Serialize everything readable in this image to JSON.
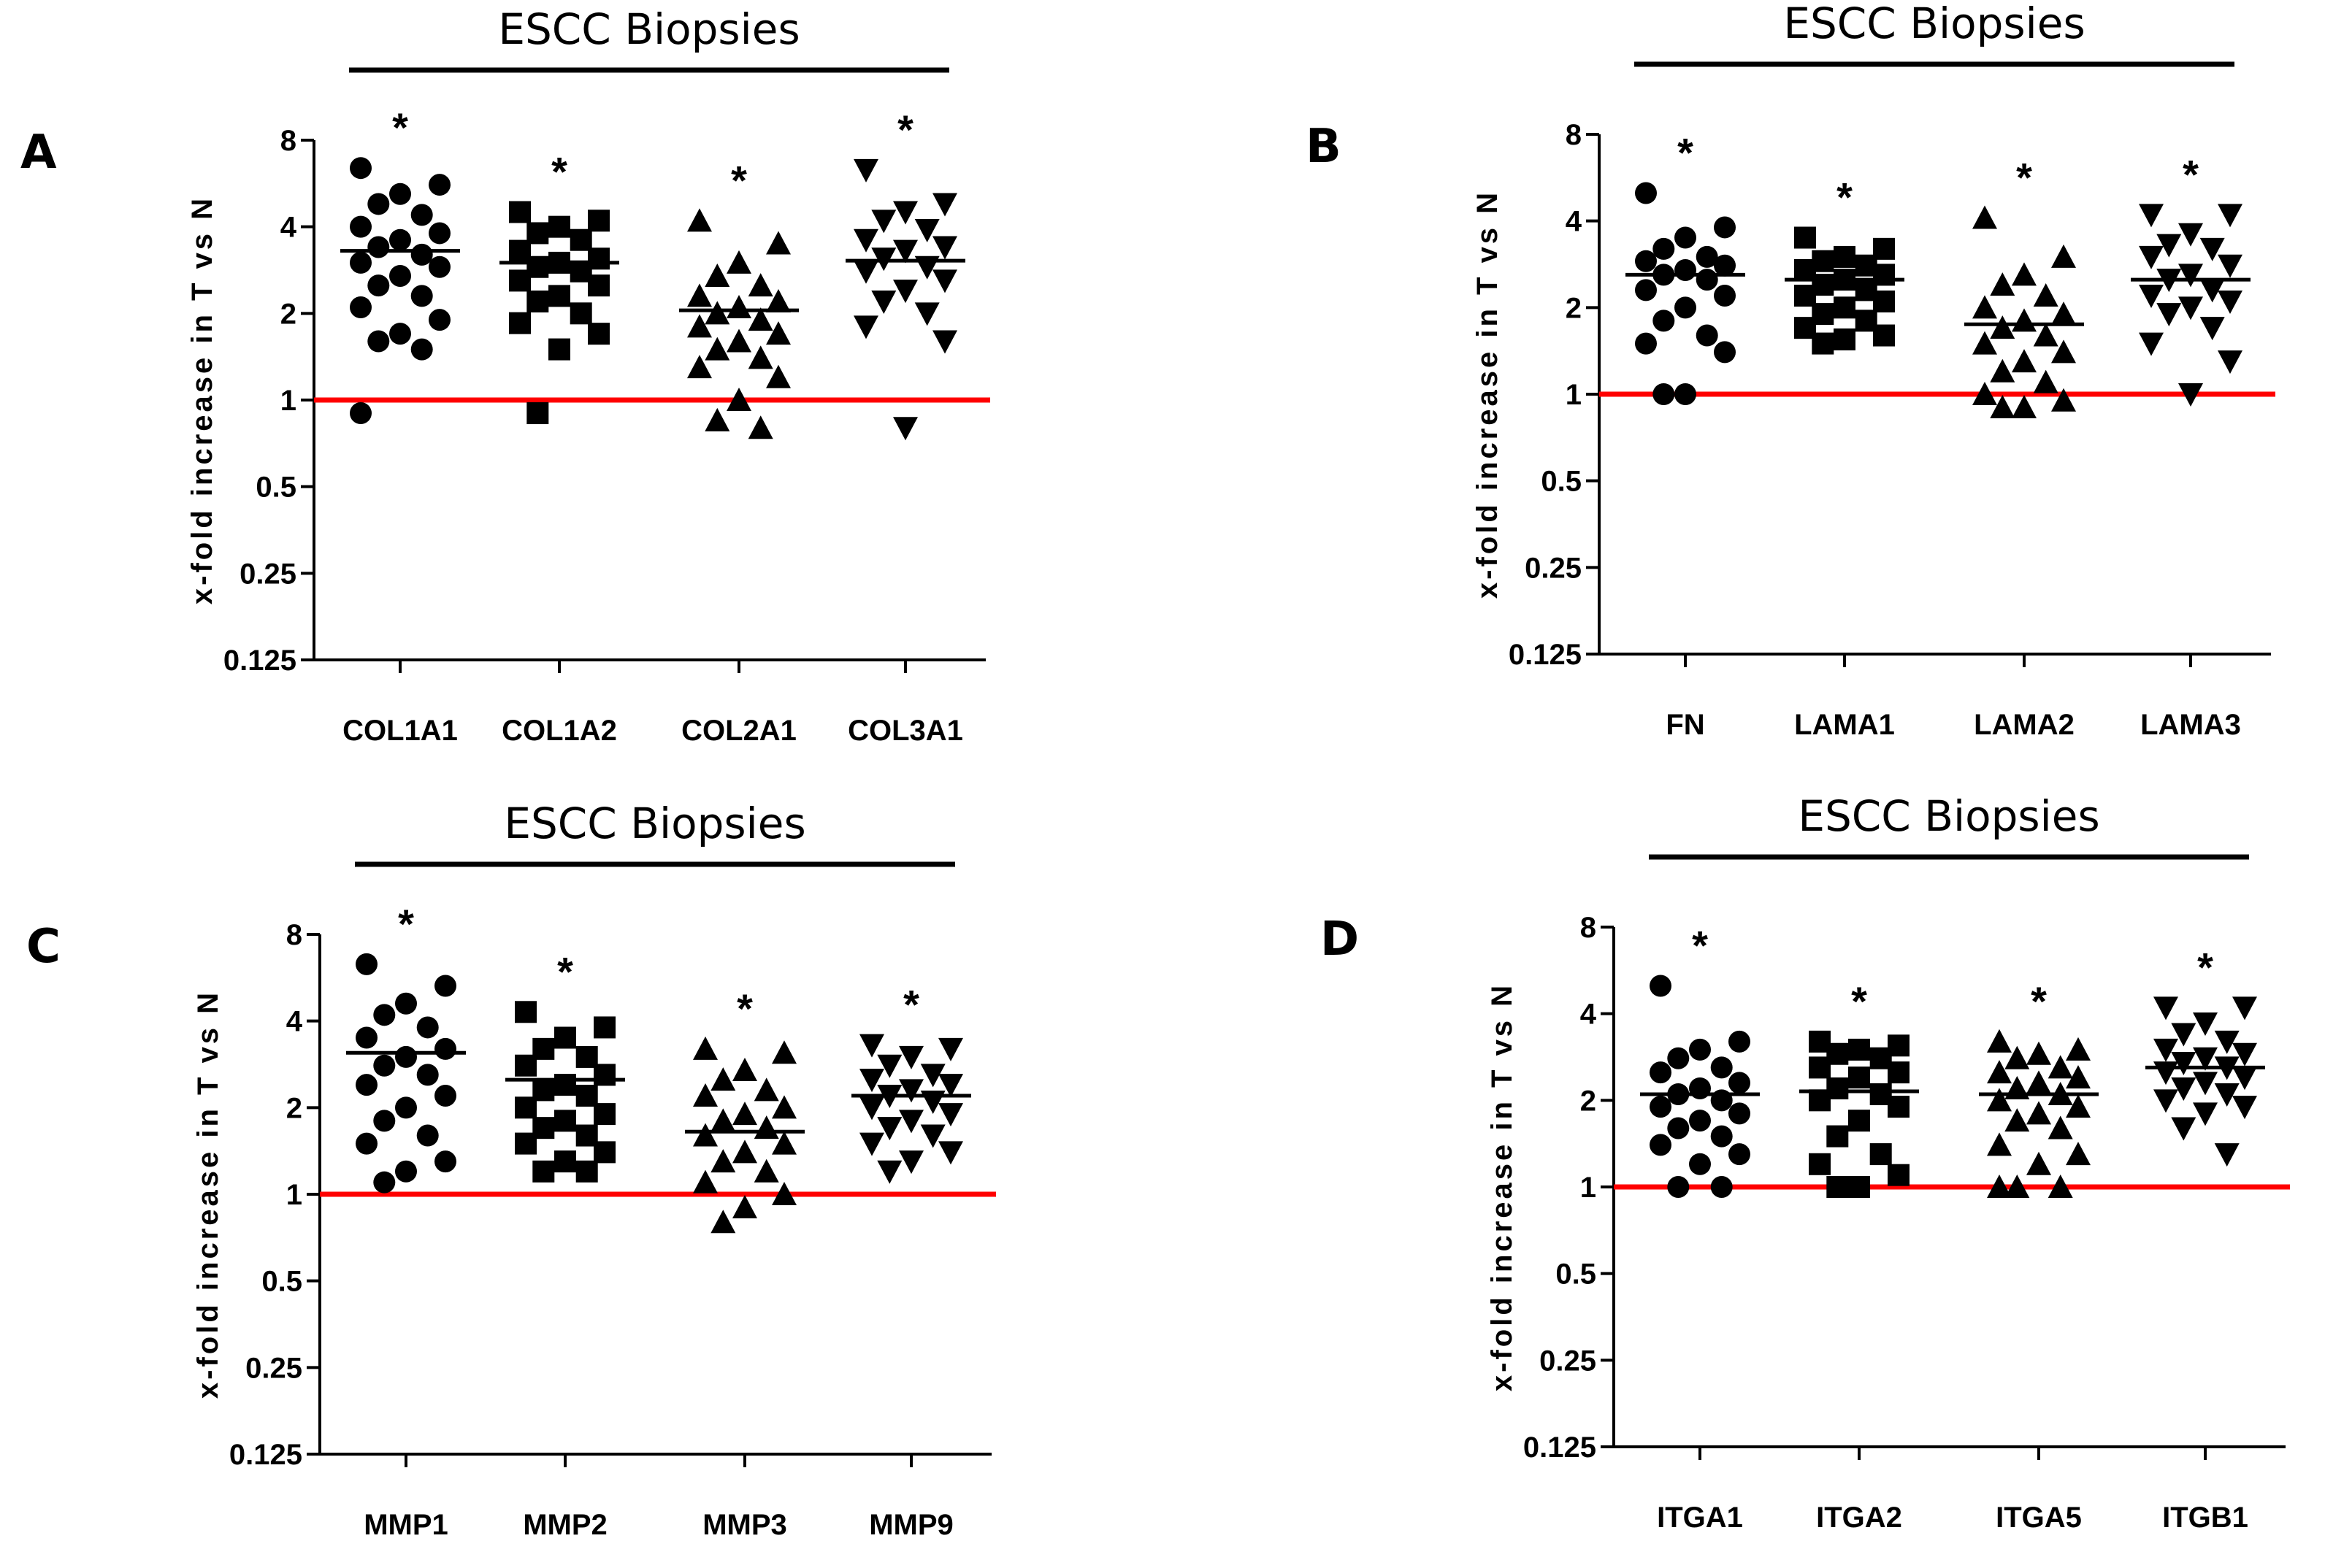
{
  "chart_data": [
    {
      "type": "scatter",
      "panel_label": "A",
      "title": "ESCC Biopsies",
      "ylabel": "x-fold increase in T vs N",
      "yscale": "log2",
      "ylim": [
        0.125,
        8
      ],
      "yticks": [
        "0.125",
        "0.25",
        "0.5",
        "1",
        "2",
        "4",
        "8"
      ],
      "baseline": 1,
      "baseline_color": "#ff0000",
      "categories": [
        "COL1A1",
        "COL1A2",
        "COL2A1",
        "COL3A1"
      ],
      "markers": [
        "circle",
        "square",
        "triangle-up",
        "triangle-down"
      ],
      "significance": [
        "*",
        "*",
        "*",
        "*"
      ],
      "means": [
        3.3,
        3.0,
        2.05,
        3.05
      ],
      "points": [
        [
          6.4,
          5.6,
          5.2,
          4.8,
          4.4,
          4.0,
          3.8,
          3.6,
          3.4,
          3.2,
          3.0,
          2.9,
          2.7,
          2.5,
          2.3,
          2.1,
          1.9,
          1.7,
          1.6,
          1.5,
          0.9
        ],
        [
          4.5,
          4.2,
          4.0,
          3.8,
          3.6,
          3.3,
          3.1,
          3.0,
          2.9,
          2.8,
          2.6,
          2.5,
          2.3,
          2.2,
          2.0,
          1.85,
          1.7,
          1.5,
          0.9
        ],
        [
          4.2,
          3.5,
          3.0,
          2.7,
          2.5,
          2.3,
          2.2,
          2.1,
          2.0,
          1.9,
          1.8,
          1.7,
          1.6,
          1.5,
          1.4,
          1.3,
          1.2,
          1.0,
          0.85,
          0.8
        ],
        [
          6.3,
          4.8,
          4.5,
          4.2,
          3.9,
          3.6,
          3.4,
          3.3,
          3.1,
          2.9,
          2.8,
          2.6,
          2.4,
          2.2,
          2.0,
          1.8,
          1.6,
          0.8
        ]
      ]
    },
    {
      "type": "scatter",
      "panel_label": "B",
      "title": "ESCC Biopsies",
      "ylabel": "x-fold increase in T vs N",
      "yscale": "log2",
      "ylim": [
        0.125,
        8
      ],
      "yticks": [
        "0.125",
        "0.25",
        "0.5",
        "1",
        "2",
        "4",
        "8"
      ],
      "baseline": 1,
      "baseline_color": "#ff0000",
      "categories": [
        "FN",
        "LAMA1",
        "LAMA2",
        "LAMA3"
      ],
      "markers": [
        "circle",
        "square",
        "triangle-up",
        "triangle-down"
      ],
      "significance": [
        "*",
        "*",
        "*",
        "*"
      ],
      "means": [
        2.6,
        2.5,
        1.75,
        2.5
      ],
      "points": [
        [
          5.0,
          3.8,
          3.5,
          3.2,
          3.0,
          2.9,
          2.8,
          2.7,
          2.6,
          2.5,
          2.3,
          2.2,
          2.0,
          1.8,
          1.6,
          1.5,
          1.4,
          1.0,
          1.0
        ],
        [
          3.5,
          3.2,
          3.0,
          2.9,
          2.8,
          2.7,
          2.6,
          2.5,
          2.4,
          2.3,
          2.2,
          2.1,
          2.0,
          1.9,
          1.8,
          1.7,
          1.6,
          1.55,
          1.5
        ],
        [
          4.1,
          3.0,
          2.6,
          2.4,
          2.2,
          2.0,
          1.9,
          1.8,
          1.7,
          1.6,
          1.5,
          1.4,
          1.3,
          1.2,
          1.1,
          1.0,
          0.95,
          0.9,
          0.9
        ],
        [
          4.2,
          4.2,
          3.6,
          3.3,
          3.2,
          3.0,
          2.8,
          2.6,
          2.5,
          2.3,
          2.2,
          2.1,
          2.0,
          1.9,
          1.7,
          1.5,
          1.3,
          1.0
        ]
      ]
    },
    {
      "type": "scatter",
      "panel_label": "C",
      "title": "ESCC Biopsies",
      "ylabel": "x-fold increase in T vs N",
      "yscale": "log2",
      "ylim": [
        0.125,
        8
      ],
      "yticks": [
        "0.125",
        "0.25",
        "0.5",
        "1",
        "2",
        "4",
        "8"
      ],
      "baseline": 1,
      "baseline_color": "#ff0000",
      "categories": [
        "MMP1",
        "MMP2",
        "MMP3",
        "MMP9"
      ],
      "markers": [
        "circle",
        "square",
        "triangle-up",
        "triangle-down"
      ],
      "significance": [
        "*",
        "*",
        "*",
        "*"
      ],
      "means": [
        3.1,
        2.5,
        1.65,
        2.2
      ],
      "points": [
        [
          6.3,
          5.3,
          4.6,
          4.2,
          3.8,
          3.5,
          3.2,
          3.0,
          2.8,
          2.6,
          2.4,
          2.2,
          2.0,
          1.8,
          1.6,
          1.5,
          1.3,
          1.2,
          1.1
        ],
        [
          4.3,
          3.8,
          3.5,
          3.2,
          3.0,
          2.8,
          2.6,
          2.4,
          2.3,
          2.2,
          2.0,
          1.9,
          1.8,
          1.7,
          1.6,
          1.5,
          1.4,
          1.3,
          1.2,
          1.2
        ],
        [
          3.2,
          3.1,
          2.7,
          2.5,
          2.3,
          2.2,
          2.0,
          1.9,
          1.8,
          1.7,
          1.6,
          1.5,
          1.4,
          1.3,
          1.2,
          1.1,
          1.0,
          0.9,
          0.8
        ],
        [
          3.3,
          3.2,
          3.0,
          2.8,
          2.6,
          2.5,
          2.4,
          2.3,
          2.2,
          2.1,
          2.0,
          1.9,
          1.8,
          1.7,
          1.6,
          1.5,
          1.4,
          1.3,
          1.2
        ]
      ]
    },
    {
      "type": "scatter",
      "panel_label": "D",
      "title": "ESCC Biopsies",
      "ylabel": "x-fold increase in T vs N",
      "yscale": "log2",
      "ylim": [
        0.125,
        8
      ],
      "yticks": [
        "0.125",
        "0.25",
        "0.5",
        "1",
        "2",
        "4",
        "8"
      ],
      "baseline": 1,
      "baseline_color": "#ff0000",
      "categories": [
        "ITGA1",
        "ITGA2",
        "ITGA5",
        "ITGB1"
      ],
      "markers": [
        "circle",
        "square",
        "triangle-up",
        "triangle-down"
      ],
      "significance": [
        "*",
        "*",
        "*",
        "*"
      ],
      "means": [
        2.1,
        2.15,
        2.1,
        2.6
      ],
      "points": [
        [
          5.0,
          3.2,
          3.0,
          2.8,
          2.6,
          2.5,
          2.3,
          2.2,
          2.1,
          2.0,
          1.9,
          1.8,
          1.7,
          1.6,
          1.5,
          1.4,
          1.3,
          1.2,
          1.0,
          1.0
        ],
        [
          3.2,
          3.1,
          3.0,
          2.9,
          2.8,
          2.6,
          2.5,
          2.4,
          2.2,
          2.1,
          2.0,
          1.9,
          1.7,
          1.5,
          1.3,
          1.2,
          1.1,
          1.0,
          1.0
        ],
        [
          3.2,
          3.0,
          2.9,
          2.8,
          2.6,
          2.5,
          2.4,
          2.3,
          2.2,
          2.1,
          2.0,
          1.9,
          1.8,
          1.7,
          1.6,
          1.4,
          1.3,
          1.2,
          1.0,
          1.0,
          1.0
        ],
        [
          4.2,
          4.2,
          3.7,
          3.4,
          3.2,
          3.0,
          2.9,
          2.8,
          2.7,
          2.6,
          2.5,
          2.4,
          2.3,
          2.2,
          2.1,
          2.0,
          1.9,
          1.8,
          1.6,
          1.3
        ]
      ]
    }
  ]
}
